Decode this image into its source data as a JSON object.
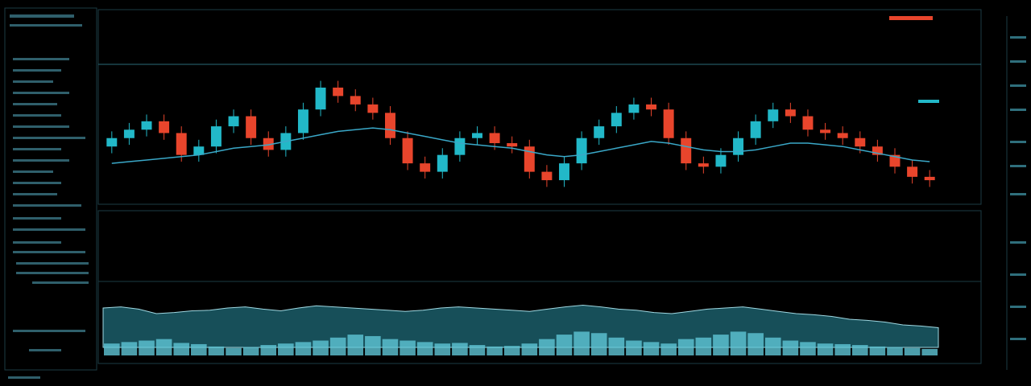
{
  "chart_data": [
    {
      "type": "candlestick",
      "up_color": "#22b8c8",
      "down_color": "#e8452c",
      "ylim": [
        20,
        95
      ],
      "open": [
        50,
        55,
        60,
        65,
        58,
        45,
        50,
        62,
        68,
        55,
        48,
        58,
        72,
        85,
        80,
        75,
        70,
        55,
        40,
        35,
        45,
        55,
        58,
        52,
        50,
        35,
        30,
        40,
        55,
        62,
        70,
        75,
        72,
        55,
        40,
        38,
        45,
        55,
        65,
        72,
        68,
        60,
        58,
        55,
        50,
        45,
        38,
        32
      ],
      "high": [
        59,
        64,
        69,
        69,
        62,
        54,
        66,
        72,
        72,
        59,
        62,
        76,
        89,
        89,
        84,
        79,
        74,
        59,
        44,
        49,
        59,
        62,
        62,
        56,
        54,
        39,
        44,
        59,
        66,
        74,
        79,
        79,
        76,
        59,
        44,
        49,
        59,
        69,
        76,
        76,
        72,
        64,
        62,
        59,
        54,
        49,
        42,
        36
      ],
      "low": [
        46,
        51,
        56,
        54,
        41,
        41,
        46,
        58,
        51,
        44,
        44,
        54,
        68,
        76,
        71,
        66,
        51,
        36,
        31,
        31,
        41,
        51,
        48,
        46,
        31,
        26,
        26,
        36,
        51,
        58,
        66,
        68,
        51,
        36,
        34,
        34,
        41,
        51,
        61,
        64,
        56,
        54,
        51,
        46,
        41,
        34,
        28,
        26
      ],
      "close": [
        55,
        60,
        65,
        58,
        45,
        50,
        62,
        68,
        55,
        48,
        58,
        72,
        85,
        80,
        75,
        70,
        55,
        40,
        35,
        45,
        55,
        58,
        52,
        50,
        35,
        30,
        40,
        55,
        62,
        70,
        75,
        72,
        55,
        40,
        38,
        45,
        55,
        65,
        72,
        68,
        60,
        58,
        55,
        50,
        45,
        38,
        32,
        30
      ],
      "ma_color": "#3aa8c8",
      "ma": [
        40,
        41,
        42,
        43,
        44,
        45,
        47,
        49,
        50,
        51,
        53,
        55,
        57,
        59,
        60,
        61,
        60,
        58,
        56,
        54,
        52,
        51,
        50,
        49,
        47,
        45,
        44,
        45,
        47,
        49,
        51,
        53,
        52,
        50,
        48,
        47,
        47,
        48,
        50,
        52,
        52,
        51,
        50,
        48,
        46,
        44,
        42,
        41
      ]
    },
    {
      "type": "area",
      "color": "#2a8fa3",
      "ylim": [
        0,
        100
      ],
      "values": [
        70,
        72,
        68,
        60,
        62,
        65,
        66,
        70,
        72,
        68,
        65,
        70,
        74,
        72,
        70,
        68,
        66,
        64,
        66,
        70,
        72,
        70,
        68,
        66,
        64,
        68,
        72,
        75,
        72,
        68,
        66,
        62,
        60,
        64,
        68,
        70,
        72,
        68,
        64,
        60,
        58,
        55,
        50,
        48,
        45,
        40,
        38,
        35
      ]
    },
    {
      "type": "bar",
      "color": "#5fc6d6",
      "ylim": [
        0,
        100
      ],
      "values": [
        40,
        45,
        50,
        55,
        42,
        38,
        30,
        25,
        28,
        35,
        40,
        45,
        50,
        60,
        70,
        65,
        55,
        50,
        45,
        40,
        42,
        35,
        30,
        32,
        40,
        55,
        70,
        80,
        75,
        60,
        50,
        45,
        40,
        55,
        60,
        70,
        80,
        75,
        60,
        50,
        45,
        40,
        38,
        35,
        30,
        28,
        25,
        22
      ]
    }
  ]
}
